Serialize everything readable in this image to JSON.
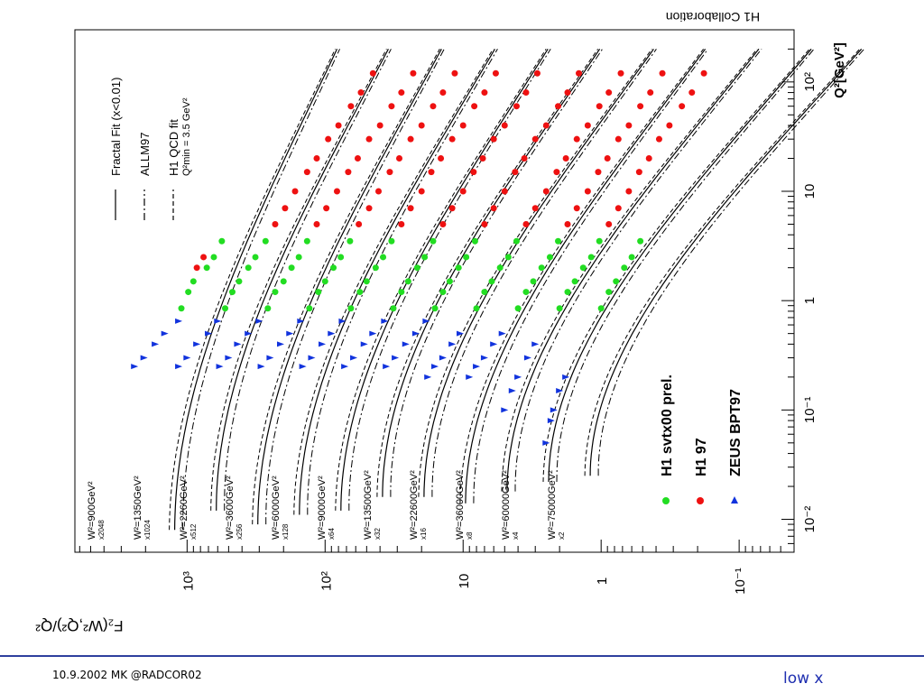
{
  "footer": {
    "date_author": "10.9.2002 MK @RADCOR02",
    "topic": "low x"
  },
  "colors": {
    "h1_svtx00": "#22dd22",
    "h1_97": "#ee1111",
    "zeus_bpt97": "#1133dd",
    "footer_rule": "#2f3f9e",
    "footer_topic": "#1f2fb0"
  },
  "chart_data": {
    "type": "line",
    "orientation": "rotated-90-clockwise",
    "collaboration_label": "H1 Collaboration",
    "xlabel": "Q²[GeV²]",
    "ylabel": "F₂(W²,Q²)/Q²",
    "x_scale": "log",
    "y_scale": "log",
    "xlim": [
      0.005,
      300
    ],
    "ylim": [
      0.04,
      6500
    ],
    "x_ticks": [
      {
        "value": 0.01,
        "label": "10⁻²"
      },
      {
        "value": 0.1,
        "label": "10⁻¹"
      },
      {
        "value": 1,
        "label": "1"
      },
      {
        "value": 10,
        "label": "10"
      },
      {
        "value": 100,
        "label": "10²"
      }
    ],
    "y_ticks": [
      {
        "value": 0.1,
        "label": "10⁻¹"
      },
      {
        "value": 1,
        "label": "1"
      },
      {
        "value": 10,
        "label": "10"
      },
      {
        "value": 100,
        "label": "10²"
      },
      {
        "value": 1000,
        "label": "10³"
      }
    ],
    "line_legend": [
      {
        "style": "solid",
        "label": "Fractal Fit (x<0.01)"
      },
      {
        "style": "dashdot",
        "label": "ALLM97"
      },
      {
        "style": "dashed",
        "label": "H1 QCD fit"
      }
    ],
    "line_legend_note": "Q²min = 3.5 GeV²",
    "marker_legend": [
      {
        "marker": "circle",
        "color": "#22dd22",
        "label": "H1 svtx00 prel."
      },
      {
        "marker": "circle",
        "color": "#ee1111",
        "label": "H1 97"
      },
      {
        "marker": "triangle",
        "color": "#1133dd",
        "label": "ZEUS BPT97"
      }
    ],
    "series": [
      {
        "name": "W²=900GeV²",
        "scale": "x2048",
        "F_low": 0.6,
        "F_high": 0.04,
        "Q2_start": 0.008,
        "points": {
          "zeus": [
            [
              0.25,
              2400
            ],
            [
              0.3,
              2050
            ],
            [
              0.4,
              1700
            ],
            [
              0.5,
              1450
            ],
            [
              0.65,
              1150
            ]
          ],
          "h1_svtx00": [
            [
              0.85,
              1100
            ],
            [
              1.2,
              980
            ],
            [
              1.5,
              900
            ],
            [
              2,
              720
            ],
            [
              2.5,
              640
            ],
            [
              3.5,
              560
            ]
          ],
          "h1_97": [
            [
              2,
              850
            ],
            [
              2.5,
              760
            ]
          ]
        }
      },
      {
        "name": "W²=1350GeV²",
        "scale": "x1024",
        "F_low": 0.6,
        "F_high": 0.034,
        "Q2_start": 0.012,
        "points": {
          "zeus": [
            [
              0.25,
              1150
            ],
            [
              0.3,
              1000
            ],
            [
              0.4,
              850
            ],
            [
              0.5,
              700
            ],
            [
              0.65,
              600
            ]
          ],
          "h1_svtx00": [
            [
              0.85,
              530
            ],
            [
              1.2,
              470
            ],
            [
              1.5,
              420
            ],
            [
              2,
              360
            ],
            [
              2.5,
              320
            ],
            [
              3.5,
              270
            ]
          ],
          "h1_97": [
            [
              5,
              230
            ],
            [
              7,
              195
            ],
            [
              10,
              165
            ],
            [
              15,
              135
            ],
            [
              20,
              115
            ],
            [
              30,
              95
            ],
            [
              40,
              80
            ],
            [
              60,
              65
            ],
            [
              80,
              55
            ],
            [
              120,
              45
            ]
          ]
        }
      },
      {
        "name": "W²=2260GeV²",
        "scale": "x512",
        "F_low": 0.6,
        "F_high": 0.028,
        "Q2_start": 0.009,
        "points": {
          "zeus": [
            [
              0.25,
              580
            ],
            [
              0.3,
              500
            ],
            [
              0.4,
              430
            ],
            [
              0.5,
              360
            ],
            [
              0.65,
              300
            ]
          ],
          "h1_svtx00": [
            [
              0.85,
              260
            ],
            [
              1.2,
              230
            ],
            [
              1.5,
              200
            ],
            [
              2,
              175
            ],
            [
              2.5,
              155
            ],
            [
              3.5,
              135
            ]
          ],
          "h1_97": [
            [
              5,
              115
            ],
            [
              7,
              98
            ],
            [
              10,
              82
            ],
            [
              15,
              68
            ],
            [
              20,
              58
            ],
            [
              30,
              48
            ],
            [
              40,
              40
            ],
            [
              60,
              33
            ],
            [
              80,
              28
            ],
            [
              120,
              23
            ]
          ]
        }
      },
      {
        "name": "W²=3600GeV²",
        "scale": "x256",
        "F_low": 0.6,
        "F_high": 0.023,
        "Q2_start": 0.011,
        "points": {
          "zeus": [
            [
              0.25,
              290
            ],
            [
              0.3,
              250
            ],
            [
              0.4,
              210
            ],
            [
              0.5,
              180
            ],
            [
              0.65,
              150
            ]
          ],
          "h1_svtx00": [
            [
              0.85,
              130
            ],
            [
              1.2,
              112
            ],
            [
              1.5,
              100
            ],
            [
              2,
              87
            ],
            [
              2.5,
              77
            ],
            [
              3.5,
              66
            ]
          ],
          "h1_97": [
            [
              5,
              57
            ],
            [
              7,
              48
            ],
            [
              10,
              41
            ],
            [
              15,
              34
            ],
            [
              20,
              29
            ],
            [
              30,
              24
            ],
            [
              40,
              20
            ],
            [
              60,
              16.5
            ],
            [
              80,
              14
            ],
            [
              120,
              11.5
            ]
          ]
        }
      },
      {
        "name": "W²=6000GeV²",
        "scale": "x128",
        "F_low": 0.6,
        "F_high": 0.019,
        "Q2_start": 0.012,
        "points": {
          "zeus": [
            [
              0.25,
              145
            ],
            [
              0.3,
              125
            ],
            [
              0.4,
              105
            ],
            [
              0.5,
              90
            ],
            [
              0.65,
              75
            ]
          ],
          "h1_svtx00": [
            [
              0.85,
              65
            ],
            [
              1.2,
              56
            ],
            [
              1.5,
              50
            ],
            [
              2,
              43
            ],
            [
              2.5,
              38
            ],
            [
              3.5,
              33
            ]
          ],
          "h1_97": [
            [
              5,
              28
            ],
            [
              7,
              24
            ],
            [
              10,
              20
            ],
            [
              15,
              17
            ],
            [
              20,
              14.5
            ],
            [
              30,
              12
            ],
            [
              40,
              10
            ],
            [
              60,
              8.3
            ],
            [
              80,
              7
            ],
            [
              120,
              5.8
            ]
          ]
        }
      },
      {
        "name": "W²=9000GeV²",
        "scale": "x64",
        "F_low": 0.6,
        "F_high": 0.016,
        "Q2_start": 0.016,
        "points": {
          "zeus": [
            [
              0.25,
              72
            ],
            [
              0.3,
              62
            ],
            [
              0.4,
              52
            ],
            [
              0.5,
              45
            ],
            [
              0.65,
              37
            ]
          ],
          "h1_svtx00": [
            [
              0.85,
              32
            ],
            [
              1.2,
              28
            ],
            [
              1.5,
              25
            ],
            [
              2,
              21.5
            ],
            [
              2.5,
              19
            ],
            [
              3.5,
              16.5
            ]
          ],
          "h1_97": [
            [
              5,
              14
            ],
            [
              7,
              12
            ],
            [
              10,
              10
            ],
            [
              15,
              8.4
            ],
            [
              20,
              7.2
            ],
            [
              30,
              6
            ],
            [
              40,
              5
            ],
            [
              60,
              4.1
            ],
            [
              80,
              3.5
            ],
            [
              120,
              2.9
            ]
          ]
        }
      },
      {
        "name": "W²=13500GeV²",
        "scale": "x32",
        "F_low": 0.6,
        "F_high": 0.013,
        "Q2_start": 0.016,
        "points": {
          "zeus": [
            [
              0.25,
              36
            ],
            [
              0.3,
              31
            ],
            [
              0.4,
              26
            ],
            [
              0.5,
              22
            ],
            [
              0.65,
              18.5
            ]
          ],
          "h1_svtx00": [
            [
              0.85,
              16
            ],
            [
              1.2,
              14
            ],
            [
              1.5,
              12.5
            ],
            [
              2,
              10.8
            ],
            [
              2.5,
              9.5
            ],
            [
              3.5,
              8.2
            ]
          ],
          "h1_97": [
            [
              5,
              7
            ],
            [
              7,
              6
            ],
            [
              10,
              5
            ],
            [
              15,
              4.2
            ],
            [
              20,
              3.6
            ],
            [
              30,
              3
            ],
            [
              40,
              2.5
            ],
            [
              60,
              2.05
            ],
            [
              80,
              1.75
            ],
            [
              120,
              1.45
            ]
          ]
        }
      },
      {
        "name": "W²=22600GeV²",
        "scale": "x16",
        "F_low": 0.6,
        "F_high": 0.011,
        "Q2_start": 0.014,
        "points": {
          "zeus": [
            [
              0.2,
              18
            ],
            [
              0.25,
              16
            ],
            [
              0.3,
              14
            ],
            [
              0.4,
              12
            ],
            [
              0.5,
              10.5
            ]
          ],
          "h1_svtx00": [
            [
              0.85,
              8
            ],
            [
              1.2,
              7
            ],
            [
              1.5,
              6.2
            ],
            [
              2,
              5.4
            ],
            [
              2.5,
              4.7
            ],
            [
              3.5,
              4.1
            ]
          ],
          "h1_97": [
            [
              5,
              3.5
            ],
            [
              7,
              3
            ],
            [
              10,
              2.5
            ],
            [
              15,
              2.1
            ],
            [
              20,
              1.8
            ],
            [
              30,
              1.5
            ],
            [
              40,
              1.25
            ],
            [
              60,
              1.03
            ],
            [
              80,
              0.88
            ],
            [
              120,
              0.72
            ]
          ]
        }
      },
      {
        "name": "W²=36000GeV²",
        "scale": "x8",
        "F_low": 0.6,
        "F_high": 0.009,
        "Q2_start": 0.018,
        "points": {
          "zeus": [
            [
              0.2,
              9
            ],
            [
              0.25,
              8
            ],
            [
              0.3,
              7
            ],
            [
              0.4,
              6
            ],
            [
              0.5,
              5.2
            ]
          ],
          "h1_svtx00": [
            [
              0.85,
              4
            ],
            [
              1.2,
              3.5
            ],
            [
              1.5,
              3.1
            ],
            [
              2,
              2.7
            ],
            [
              2.5,
              2.35
            ],
            [
              3.5,
              2.05
            ]
          ],
          "h1_97": [
            [
              5,
              1.75
            ],
            [
              7,
              1.5
            ],
            [
              10,
              1.25
            ],
            [
              15,
              1.05
            ],
            [
              20,
              0.9
            ],
            [
              30,
              0.75
            ],
            [
              40,
              0.63
            ],
            [
              60,
              0.52
            ],
            [
              80,
              0.44
            ],
            [
              120,
              0.36
            ]
          ]
        }
      },
      {
        "name": "W²=60000GeV²",
        "scale": "x4",
        "F_low": 0.6,
        "F_high": 0.0075,
        "Q2_start": 0.022,
        "points": {
          "zeus": [
            [
              0.1,
              5
            ],
            [
              0.15,
              4.4
            ],
            [
              0.2,
              4
            ],
            [
              0.3,
              3.4
            ],
            [
              0.4,
              3
            ]
          ],
          "h1_svtx00": [
            [
              0.85,
              2
            ],
            [
              1.2,
              1.75
            ],
            [
              1.5,
              1.55
            ],
            [
              2,
              1.35
            ],
            [
              2.5,
              1.18
            ],
            [
              3.5,
              1.03
            ]
          ],
          "h1_97": [
            [
              5,
              0.88
            ],
            [
              7,
              0.75
            ],
            [
              10,
              0.63
            ],
            [
              15,
              0.53
            ],
            [
              20,
              0.45
            ],
            [
              30,
              0.38
            ],
            [
              40,
              0.32
            ],
            [
              60,
              0.26
            ],
            [
              80,
              0.22
            ],
            [
              120,
              0.18
            ]
          ]
        }
      },
      {
        "name": "W²=75000GeV²",
        "scale": "x2",
        "F_low": 0.6,
        "F_high": 0.0065,
        "Q2_start": 0.025,
        "points": {
          "zeus": [
            [
              0.05,
              2.5
            ],
            [
              0.08,
              2.3
            ],
            [
              0.1,
              2.2
            ],
            [
              0.15,
              2
            ],
            [
              0.2,
              1.8
            ]
          ],
          "h1_svtx00": [
            [
              0.85,
              1
            ],
            [
              1.2,
              0.88
            ],
            [
              1.5,
              0.78
            ],
            [
              2,
              0.68
            ],
            [
              2.5,
              0.6
            ],
            [
              3.5,
              0.52
            ]
          ],
          "h1_97": []
        }
      }
    ]
  }
}
